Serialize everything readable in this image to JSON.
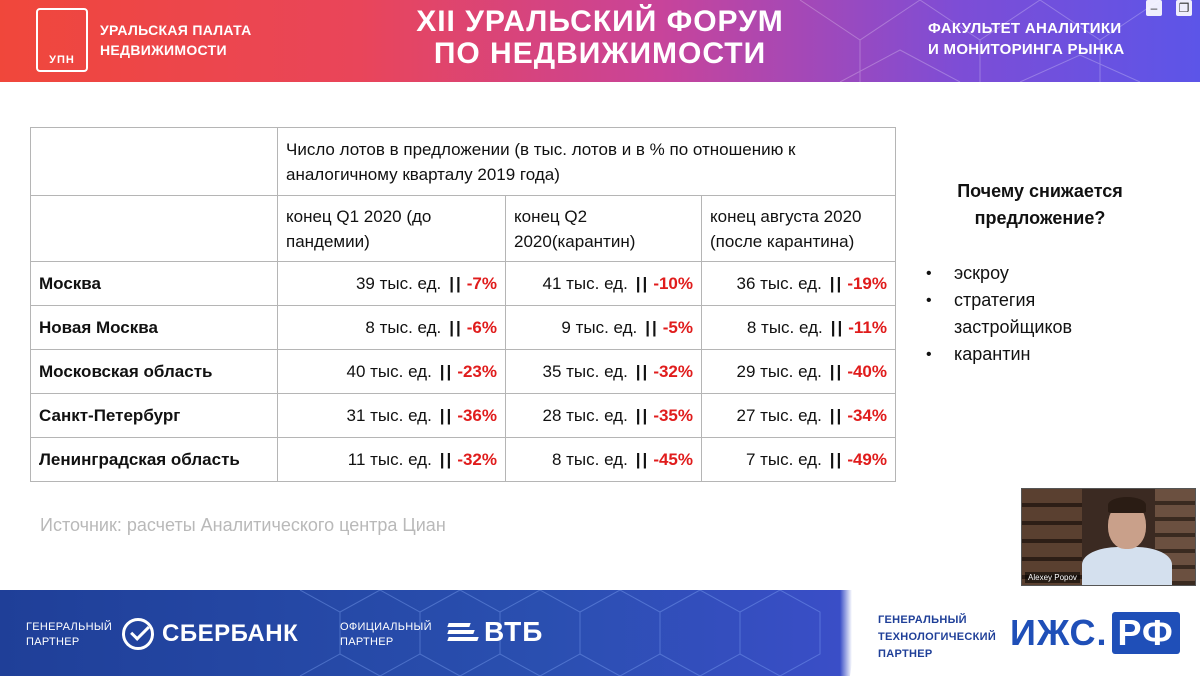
{
  "header": {
    "logo_text": "УПН",
    "chamber_line1": "УРАЛЬСКАЯ ПАЛАТА",
    "chamber_line2": "НЕДВИЖИМОСТИ",
    "forum_line1": "XII УРАЛЬСКИЙ ФОРУМ",
    "forum_line2": "ПО НЕДВИЖИМОСТИ",
    "faculty_line1": "ФАКУЛЬТЕТ АНАЛИТИКИ",
    "faculty_line2": "И МОНИТОРИНГА РЫНКА",
    "win_minimize": "–",
    "win_restore": "❐"
  },
  "table": {
    "header_main": "Число лотов в предложении (в тыс. лотов и в % по отношению к аналогичному кварталу 2019 года)",
    "columns": [
      "конец Q1 2020 (до пандемии)",
      "конец Q2 2020(карантин)",
      "конец августа 2020 (после карантина)"
    ],
    "separator": "||",
    "rows": [
      {
        "region": "Москва",
        "cells": [
          {
            "value": "39 тыс. ед.",
            "pct": "-7%"
          },
          {
            "value": "41 тыс. ед.",
            "pct": "-10%"
          },
          {
            "value": "36 тыс. ед.",
            "pct": "-19%"
          }
        ]
      },
      {
        "region": "Новая Москва",
        "cells": [
          {
            "value": "8 тыс. ед.",
            "pct": "-6%"
          },
          {
            "value": "9 тыс. ед.",
            "pct": "-5%"
          },
          {
            "value": "8 тыс. ед.",
            "pct": "-11%"
          }
        ]
      },
      {
        "region": "Московская область",
        "cells": [
          {
            "value": "40 тыс. ед.",
            "pct": "-23%"
          },
          {
            "value": "35 тыс. ед.",
            "pct": "-32%"
          },
          {
            "value": "29 тыс. ед.",
            "pct": "-40%"
          }
        ]
      },
      {
        "region": "Санкт-Петербург",
        "cells": [
          {
            "value": "31 тыс. ед.",
            "pct": "-36%"
          },
          {
            "value": "28 тыс. ед.",
            "pct": "-35%"
          },
          {
            "value": "27 тыс. ед.",
            "pct": "-34%"
          }
        ]
      },
      {
        "region": "Ленинградская область",
        "cells": [
          {
            "value": "11 тыс. ед.",
            "pct": "-32%"
          },
          {
            "value": "8 тыс. ед.",
            "pct": "-45%"
          },
          {
            "value": "7 тыс. ед.",
            "pct": "-49%"
          }
        ]
      }
    ]
  },
  "side": {
    "question": "Почему снижается предложение?",
    "bullets": [
      "эскроу",
      "стратегия застройщиков",
      "карантин"
    ]
  },
  "source": "Источник: расчеты Аналитического центра Циан",
  "video": {
    "participant_name": "Alexey Popov"
  },
  "footer": {
    "general_partner_line1": "ГЕНЕРАЛЬНЫЙ",
    "general_partner_line2": "ПАРТНЕР",
    "sber_name": "СБЕРБАНК",
    "official_partner_line1": "ОФИЦИАЛЬНЫЙ",
    "official_partner_line2": "ПАРТНЕР",
    "vtb_name": "ВТБ",
    "tech_partner_line1": "ГЕНЕРАЛЬНЫЙ",
    "tech_partner_line2": "ТЕХНОЛОГИЧЕСКИЙ",
    "tech_partner_line3": "ПАРТНЕР",
    "izhs_name": "ИЖС.",
    "izhs_rf": "РФ"
  },
  "colors": {
    "accent_red": "#e01c1c",
    "header_start": "#f0473b",
    "header_end": "#5c55e8",
    "footer_blue": "#1f3f98"
  }
}
